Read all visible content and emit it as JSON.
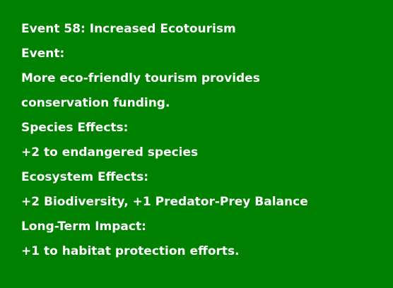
{
  "colors": {
    "background": "#008000",
    "text": "#ffffff"
  },
  "event_card": {
    "title": "Event 58: Increased Ecotourism",
    "event_heading": "Event:",
    "event_description_line1": "More eco-friendly tourism provides",
    "event_description_line2": "conservation funding.",
    "species_heading": "Species Effects:",
    "species_effects": "+2 to endangered species",
    "ecosystem_heading": "Ecosystem Effects:",
    "ecosystem_effects": "+2 Biodiversity, +1 Predator-Prey Balance",
    "long_term_heading": "Long-Term Impact:",
    "long_term_impact": "+1 to habitat protection efforts."
  }
}
